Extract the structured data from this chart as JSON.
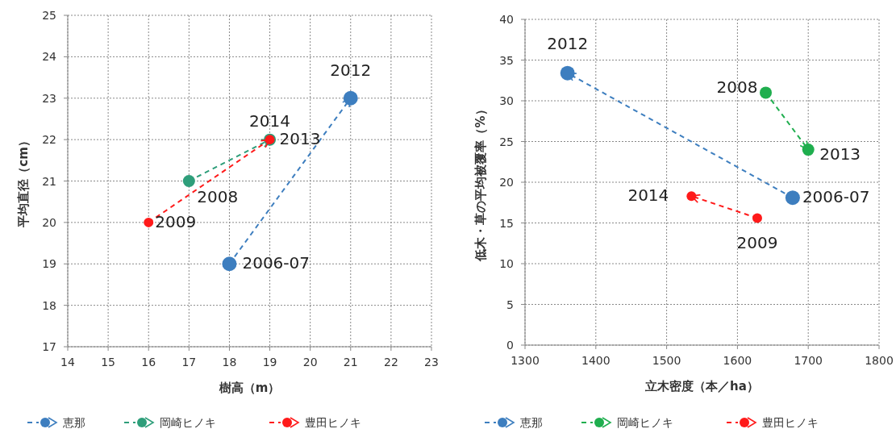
{
  "chart_data": [
    {
      "type": "line",
      "xlabel": "樹高（m）",
      "ylabel": "平均直径（cm）",
      "xlim": [
        14,
        23
      ],
      "xticks": [
        14,
        15,
        16,
        17,
        18,
        19,
        20,
        21,
        22,
        23
      ],
      "ylim": [
        17,
        25
      ],
      "yticks": [
        17,
        18,
        19,
        20,
        21,
        22,
        23,
        24,
        25
      ],
      "grid": true,
      "legend": "bottom",
      "marker": "circle",
      "line_style": "dashed",
      "series": [
        {
          "name": "恵那",
          "color": "#3d7ebf",
          "x": [
            18,
            21
          ],
          "values": [
            19,
            23
          ]
        },
        {
          "name": "岡崎ヒノキ",
          "color": "#2e9e7a",
          "x": [
            17,
            19
          ],
          "values": [
            21,
            22
          ]
        },
        {
          "name": "豊田ヒノキ",
          "color": "#ff1a1a",
          "x": [
            16,
            19
          ],
          "values": [
            20,
            22
          ]
        }
      ],
      "annotations": [
        {
          "text": "2006-07",
          "x": 18,
          "y": 19
        },
        {
          "text": "2012",
          "x": 21,
          "y": 23
        },
        {
          "text": "2008",
          "x": 17,
          "y": 21
        },
        {
          "text": "2013",
          "x": 19,
          "y": 22
        },
        {
          "text": "2009",
          "x": 16,
          "y": 20
        },
        {
          "text": "2014",
          "x": 19,
          "y": 22
        }
      ]
    },
    {
      "type": "line",
      "xlabel": "立木密度（本／ha）",
      "ylabel": "低木・草の平均被覆率（%）",
      "xlim": [
        1300,
        1800
      ],
      "xticks": [
        1300,
        1400,
        1500,
        1600,
        1700,
        1800
      ],
      "ylim": [
        0,
        40
      ],
      "yticks": [
        0,
        5,
        10,
        15,
        20,
        25,
        30,
        35,
        40
      ],
      "grid": true,
      "legend": "bottom",
      "marker": "circle",
      "line_style": "dashed",
      "series": [
        {
          "name": "恵那",
          "color": "#3d7ebf",
          "x": [
            1678,
            1360
          ],
          "values": [
            18.1,
            33.4
          ]
        },
        {
          "name": "岡崎ヒノキ",
          "color": "#1fae4e",
          "x": [
            1640,
            1700
          ],
          "values": [
            31,
            24
          ]
        },
        {
          "name": "豊田ヒノキ",
          "color": "#ff1a1a",
          "x": [
            1628,
            1535
          ],
          "values": [
            15.6,
            18.3
          ]
        }
      ],
      "annotations": [
        {
          "text": "2006-07",
          "x": 1678,
          "y": 18.1
        },
        {
          "text": "2012",
          "x": 1360,
          "y": 33.4
        },
        {
          "text": "2008",
          "x": 1640,
          "y": 31
        },
        {
          "text": "2013",
          "x": 1700,
          "y": 24
        },
        {
          "text": "2009",
          "x": 1628,
          "y": 15.6
        },
        {
          "text": "2014",
          "x": 1535,
          "y": 18.3
        }
      ]
    }
  ]
}
